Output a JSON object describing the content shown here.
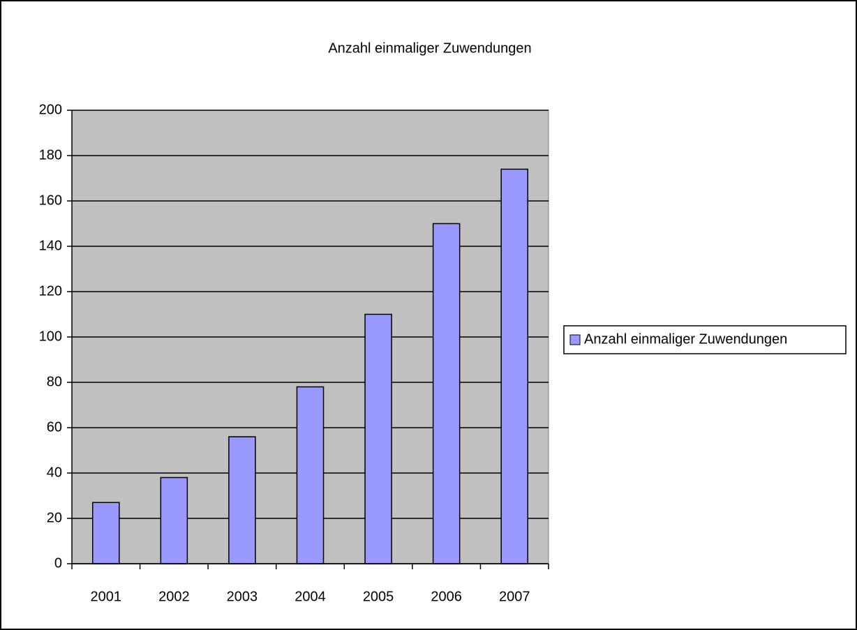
{
  "chart_data": {
    "type": "bar",
    "title": "Anzahl einmaliger Zuwendungen",
    "categories": [
      "2001",
      "2002",
      "2003",
      "2004",
      "2005",
      "2006",
      "2007"
    ],
    "series": [
      {
        "name": "Anzahl einmaliger Zuwendungen",
        "color": "#9999ff",
        "values": [
          27,
          38,
          56,
          78,
          110,
          150,
          174
        ]
      }
    ],
    "ylim": [
      0,
      200
    ],
    "yticks": [
      0,
      20,
      40,
      60,
      80,
      100,
      120,
      140,
      160,
      180,
      200
    ],
    "grid": true,
    "legend": "right"
  }
}
